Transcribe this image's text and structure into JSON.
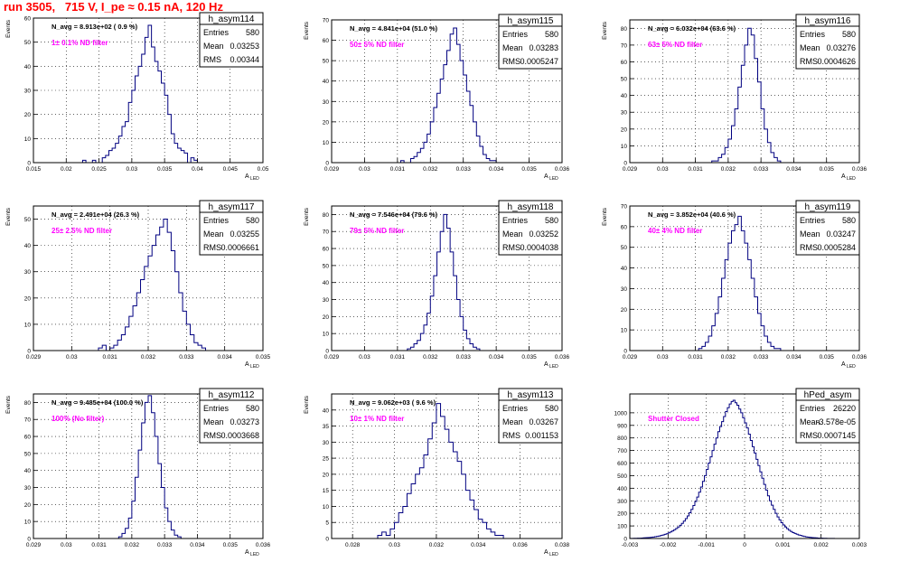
{
  "title": "run 3505,   715 V, I_pe ≈ 0.15 nA, 120 Hz",
  "colors": {
    "title": "#ff0000",
    "histogram": "#000080",
    "annotation": "#ff00ff",
    "grid": "#000000"
  },
  "chart_data": [
    {
      "type": "histogram",
      "name": "h_asym114",
      "stats": {
        "Entries": "580",
        "Mean": "0.03253",
        "RMS": "0.00344"
      },
      "navg": "N_avg = 8.913e+02 ( 0.9 %)",
      "filter": "1± 0.1% ND filter",
      "ylabel": "Events",
      "xlabel": "A_LED",
      "xlim": [
        0.015,
        0.05
      ],
      "ylim": [
        0,
        60
      ],
      "xticks": [
        "0.015",
        "0.02",
        "0.025",
        "0.03",
        "0.035",
        "0.04",
        "0.045",
        "0.05"
      ],
      "yticks": [
        "0",
        "10",
        "20",
        "30",
        "40",
        "50",
        "60"
      ],
      "bins_x0": 0.015,
      "bin_width": 0.0005,
      "counts": [
        0,
        0,
        0,
        0,
        0,
        0,
        0,
        0,
        0,
        0,
        0,
        0,
        0,
        0,
        0,
        1,
        0,
        0,
        1,
        0,
        0,
        2,
        3,
        5,
        6,
        8,
        11,
        15,
        17,
        25,
        30,
        36,
        40,
        45,
        52,
        57,
        48,
        42,
        38,
        33,
        28,
        20,
        12,
        8,
        6,
        5,
        4,
        0,
        2,
        1,
        0,
        0,
        0,
        0,
        0,
        0,
        0,
        0,
        0,
        0,
        0,
        0,
        0,
        0,
        0,
        0,
        0,
        0,
        0,
        0
      ],
      "border_color": "#000000"
    },
    {
      "type": "histogram",
      "name": "h_asym115",
      "stats": {
        "Entries": "580",
        "Mean": "0.03283",
        "RMS": "0.0005247"
      },
      "navg": "N_avg = 4.841e+04 (51.0 %)",
      "filter": "50± 5% ND filter",
      "ylabel": "Events",
      "xlabel": "A_LED",
      "xlim": [
        0.029,
        0.036
      ],
      "ylim": [
        0,
        70
      ],
      "xticks": [
        "0.029",
        "0.03",
        "0.031",
        "0.032",
        "0.033",
        "0.034",
        "0.035",
        "0.036"
      ],
      "yticks": [
        "0",
        "10",
        "20",
        "30",
        "40",
        "50",
        "60",
        "70"
      ],
      "bins_x0": 0.029,
      "bin_width": 0.0001,
      "counts": [
        0,
        0,
        0,
        0,
        0,
        0,
        0,
        0,
        0,
        0,
        0,
        0,
        0,
        0,
        0,
        0,
        0,
        0,
        0,
        0,
        0,
        1,
        0,
        0,
        2,
        3,
        5,
        7,
        10,
        14,
        20,
        27,
        34,
        41,
        48,
        55,
        63,
        66,
        58,
        50,
        43,
        35,
        28,
        20,
        13,
        8,
        4,
        2,
        1,
        1,
        0,
        0,
        0,
        0,
        0,
        0,
        0,
        0,
        0,
        0,
        0,
        0,
        0,
        0,
        0,
        0,
        0,
        0,
        0,
        0
      ],
      "border_color": "#000000"
    },
    {
      "type": "histogram",
      "name": "h_asym116",
      "stats": {
        "Entries": "580",
        "Mean": "0.03276",
        "RMS": "0.0004626"
      },
      "navg": "N_avg = 6.032e+04 (63.6 %)",
      "filter": "63± 5% ND filter",
      "ylabel": "Events",
      "xlabel": "A_LED",
      "xlim": [
        0.029,
        0.036
      ],
      "ylim": [
        0,
        85
      ],
      "xticks": [
        "0.029",
        "0.03",
        "0.031",
        "0.032",
        "0.033",
        "0.034",
        "0.035",
        "0.036"
      ],
      "yticks": [
        "0",
        "10",
        "20",
        "30",
        "40",
        "50",
        "60",
        "70",
        "80"
      ],
      "bins_x0": 0.029,
      "bin_width": 0.0001,
      "counts": [
        0,
        0,
        0,
        0,
        0,
        0,
        0,
        0,
        0,
        0,
        0,
        0,
        0,
        0,
        0,
        0,
        0,
        0,
        0,
        0,
        0,
        0,
        0,
        0,
        0,
        1,
        1,
        3,
        5,
        9,
        14,
        22,
        32,
        45,
        58,
        70,
        80,
        76,
        62,
        48,
        32,
        20,
        12,
        6,
        3,
        1,
        0,
        0,
        0,
        0,
        0,
        0,
        0,
        0,
        0,
        0,
        0,
        0,
        0,
        0,
        0,
        0,
        0,
        0,
        0,
        0,
        0,
        0,
        0,
        0
      ],
      "border_color": "#000000"
    },
    {
      "type": "histogram",
      "name": "h_asym117",
      "stats": {
        "Entries": "580",
        "Mean": "0.03255",
        "RMS": "0.0006661"
      },
      "navg": "N_avg = 2.491e+04 (26.3 %)",
      "filter": "25± 2.5% ND filter",
      "ylabel": "Events",
      "xlabel": "A_LED",
      "xlim": [
        0.029,
        0.035
      ],
      "ylim": [
        0,
        55
      ],
      "xticks": [
        "0.029",
        "0.03",
        "0.031",
        "0.032",
        "0.033",
        "0.034",
        "0.035"
      ],
      "yticks": [
        "0",
        "10",
        "20",
        "30",
        "40",
        "50"
      ],
      "bins_x0": 0.029,
      "bin_width": 0.0001,
      "counts": [
        0,
        0,
        0,
        0,
        0,
        0,
        0,
        0,
        0,
        0,
        0,
        0,
        0,
        0,
        0,
        0,
        0,
        1,
        2,
        0,
        1,
        2,
        4,
        6,
        9,
        13,
        17,
        22,
        27,
        32,
        36,
        40,
        44,
        47,
        50,
        45,
        38,
        30,
        22,
        15,
        10,
        6,
        3,
        2,
        1,
        0,
        0,
        0,
        0,
        0,
        0,
        0,
        0,
        0,
        0,
        0,
        0,
        0,
        0,
        0
      ],
      "border_color": "#000000"
    },
    {
      "type": "histogram",
      "name": "h_asym118",
      "stats": {
        "Entries": "580",
        "Mean": "0.03252",
        "RMS": "0.0004038"
      },
      "navg": "N_avg = 7.546e+04 (79.6 %)",
      "filter": "79± 5% ND filter",
      "ylabel": "Events",
      "xlabel": "A_LED",
      "xlim": [
        0.029,
        0.036
      ],
      "ylim": [
        0,
        85
      ],
      "xticks": [
        "0.029",
        "0.03",
        "0.031",
        "0.032",
        "0.033",
        "0.034",
        "0.035",
        "0.036"
      ],
      "yticks": [
        "0",
        "10",
        "20",
        "30",
        "40",
        "50",
        "60",
        "70",
        "80"
      ],
      "bins_x0": 0.029,
      "bin_width": 0.0001,
      "counts": [
        0,
        0,
        0,
        0,
        0,
        0,
        0,
        0,
        0,
        0,
        0,
        0,
        0,
        0,
        0,
        0,
        0,
        0,
        0,
        0,
        0,
        0,
        0,
        1,
        2,
        4,
        6,
        10,
        15,
        22,
        32,
        44,
        58,
        70,
        80,
        72,
        58,
        44,
        30,
        20,
        12,
        7,
        4,
        2,
        1,
        0,
        0,
        0,
        0,
        0,
        0,
        0,
        0,
        0,
        0,
        0,
        0,
        0,
        0,
        0,
        0,
        0,
        0,
        0,
        0,
        0,
        0,
        0,
        0,
        0
      ],
      "border_color": "#000000"
    },
    {
      "type": "histogram",
      "name": "h_asym119",
      "stats": {
        "Entries": "580",
        "Mean": "0.03247",
        "RMS": "0.0005284"
      },
      "navg": "N_avg = 3.852e+04 (40.6 %)",
      "filter": "40± 4% ND filter",
      "ylabel": "Events",
      "xlabel": "A_LED",
      "xlim": [
        0.029,
        0.036
      ],
      "ylim": [
        0,
        70
      ],
      "xticks": [
        "0.029",
        "0.03",
        "0.031",
        "0.032",
        "0.033",
        "0.034",
        "0.035",
        "0.036"
      ],
      "yticks": [
        "0",
        "10",
        "20",
        "30",
        "40",
        "50",
        "60",
        "70"
      ],
      "bins_x0": 0.029,
      "bin_width": 0.0001,
      "counts": [
        0,
        0,
        0,
        0,
        0,
        0,
        0,
        0,
        0,
        0,
        0,
        0,
        0,
        0,
        0,
        0,
        0,
        0,
        0,
        0,
        0,
        1,
        2,
        4,
        7,
        12,
        18,
        26,
        35,
        44,
        52,
        58,
        61,
        65,
        58,
        52,
        44,
        35,
        26,
        18,
        12,
        7,
        4,
        2,
        1,
        1,
        0,
        0,
        0,
        0,
        0,
        0,
        0,
        0,
        0,
        0,
        0,
        0,
        0,
        0,
        0,
        0,
        0,
        0,
        0,
        0,
        0,
        0,
        0,
        0
      ],
      "border_color": "#000000"
    },
    {
      "type": "histogram",
      "name": "h_asym112",
      "stats": {
        "Entries": "580",
        "Mean": "0.03273",
        "RMS": "0.0003668"
      },
      "navg": "N_avg = 9.485e+04 (100.0 %)",
      "filter": "100% (No filter)",
      "ylabel": "Events",
      "xlabel": "A_LED",
      "xlim": [
        0.029,
        0.036
      ],
      "ylim": [
        0,
        85
      ],
      "xticks": [
        "0.029",
        "0.03",
        "0.031",
        "0.032",
        "0.033",
        "0.034",
        "0.035",
        "0.036"
      ],
      "yticks": [
        "0",
        "10",
        "20",
        "30",
        "40",
        "50",
        "60",
        "70",
        "80"
      ],
      "bins_x0": 0.029,
      "bin_width": 0.0001,
      "counts": [
        0,
        0,
        0,
        0,
        0,
        0,
        0,
        0,
        0,
        0,
        0,
        0,
        0,
        0,
        0,
        0,
        0,
        0,
        0,
        0,
        0,
        0,
        0,
        0,
        0,
        0,
        1,
        3,
        6,
        12,
        22,
        36,
        52,
        68,
        80,
        84,
        74,
        60,
        44,
        30,
        18,
        10,
        5,
        2,
        1,
        0,
        0,
        0,
        0,
        0,
        0,
        0,
        0,
        0,
        0,
        0,
        0,
        0,
        0,
        0,
        0,
        0,
        0,
        0,
        0,
        0,
        0,
        0,
        0,
        0
      ],
      "border_color": "#000000"
    },
    {
      "type": "histogram",
      "name": "h_asym113",
      "stats": {
        "Entries": "580",
        "Mean": "0.03267",
        "RMS": "0.001153"
      },
      "navg": "N_avg = 9.062e+03 ( 9.6 %)",
      "filter": "10± 1% ND filter",
      "ylabel": "Events",
      "xlabel": "A_LED",
      "xlim": [
        0.027,
        0.038
      ],
      "ylim": [
        0,
        45
      ],
      "xticks": [
        "",
        "0.028",
        "0.03",
        "0.032",
        "0.034",
        "0.036",
        "0.038"
      ],
      "xtick_values": [
        0.027,
        0.028,
        0.03,
        0.032,
        0.034,
        0.036,
        0.038
      ],
      "yticks": [
        "0",
        "5",
        "10",
        "15",
        "20",
        "25",
        "30",
        "35",
        "40"
      ],
      "bins_x0": 0.027,
      "bin_width": 0.0002,
      "counts": [
        0,
        0,
        0,
        0,
        0,
        0,
        0,
        0,
        0,
        0,
        0,
        1,
        2,
        1,
        3,
        5,
        8,
        10,
        14,
        17,
        20,
        22,
        26,
        31,
        36,
        42,
        38,
        34,
        30,
        27,
        24,
        20,
        15,
        12,
        9,
        6,
        5,
        3,
        2,
        1,
        1,
        0,
        0,
        0,
        0,
        0,
        0,
        0,
        0,
        0,
        0,
        0,
        0,
        0,
        0
      ],
      "border_color": "#000000"
    },
    {
      "type": "histogram",
      "name": "hPed_asym",
      "stats": {
        "Entries": "26220",
        "Mean": "-3.578e-05",
        "RMS": "0.0007145"
      },
      "navg": "",
      "filter": "Shutter Closed",
      "ylabel": "",
      "xlabel": "",
      "xlim": [
        -0.003,
        0.003
      ],
      "ylim": [
        0,
        1150
      ],
      "xticks": [
        "-0.003",
        "-0.002",
        "-0.001",
        "0",
        "0.001",
        "0.002",
        "0.003"
      ],
      "yticks": [
        "0",
        "100",
        "200",
        "300",
        "400",
        "500",
        "600",
        "700",
        "800",
        "900",
        "1000"
      ],
      "bins_x0": -0.003,
      "bin_width": 5e-05,
      "counts": [
        1,
        1,
        2,
        2,
        3,
        3,
        4,
        5,
        6,
        7,
        8,
        10,
        12,
        14,
        17,
        20,
        24,
        28,
        33,
        38,
        45,
        52,
        60,
        70,
        80,
        92,
        105,
        120,
        138,
        158,
        180,
        205,
        232,
        262,
        295,
        330,
        368,
        410,
        455,
        500,
        550,
        600,
        650,
        700,
        750,
        800,
        850,
        890,
        930,
        970,
        1010,
        1040,
        1070,
        1090,
        1100,
        1080,
        1060,
        1030,
        1000,
        960,
        920,
        880,
        830,
        780,
        730,
        680,
        630,
        580,
        530,
        480,
        430,
        385,
        340,
        300,
        265,
        232,
        200,
        172,
        148,
        126,
        108,
        92,
        78,
        66,
        56,
        47,
        40,
        34,
        28,
        24,
        20,
        16,
        13,
        11,
        9,
        7,
        6,
        5,
        4,
        3,
        3,
        2,
        2,
        1,
        1,
        1,
        1,
        0,
        0,
        0,
        0,
        0,
        0,
        0,
        0,
        0
      ],
      "border_color": "#000000"
    }
  ]
}
